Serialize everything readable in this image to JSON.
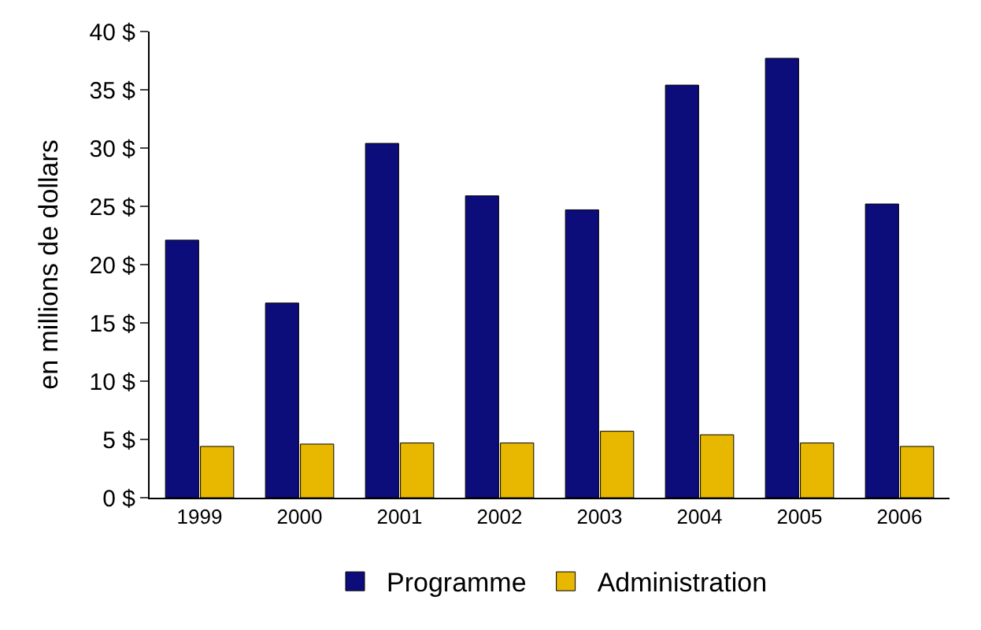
{
  "chart_data": {
    "type": "bar",
    "ylabel": "en millions de dollars",
    "categories": [
      "1999",
      "2000",
      "2001",
      "2002",
      "2003",
      "2004",
      "2005",
      "2006"
    ],
    "series": [
      {
        "name": "Programme",
        "color": "#0c0c7a",
        "values": [
          22.1,
          16.7,
          30.4,
          25.9,
          24.7,
          35.4,
          37.7,
          25.2
        ]
      },
      {
        "name": "Administration",
        "color": "#e8b800",
        "values": [
          4.4,
          4.6,
          4.7,
          4.7,
          5.7,
          5.4,
          4.7,
          4.4
        ]
      }
    ],
    "ylim": [
      0,
      40
    ],
    "yticks": [
      {
        "value": 0,
        "label": "0 $"
      },
      {
        "value": 5,
        "label": "5 $"
      },
      {
        "value": 10,
        "label": "10 $"
      },
      {
        "value": 15,
        "label": "15 $"
      },
      {
        "value": 20,
        "label": "20 $"
      },
      {
        "value": 25,
        "label": "25 $"
      },
      {
        "value": 30,
        "label": "30 $"
      },
      {
        "value": 35,
        "label": "35 $"
      },
      {
        "value": 40,
        "label": "40 $"
      }
    ],
    "legend": "bottom"
  }
}
